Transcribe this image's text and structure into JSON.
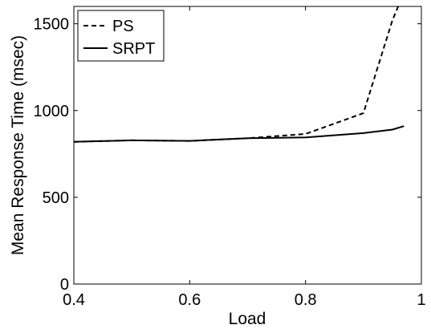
{
  "chart_data": {
    "type": "line",
    "title": "",
    "xlabel": "Load",
    "ylabel": "Mean Response Time (msec)",
    "xlim": [
      0.4,
      1.0
    ],
    "ylim": [
      0,
      1600
    ],
    "xticks": [
      0.4,
      0.6,
      0.8,
      1.0
    ],
    "xtick_labels": [
      "0.4",
      "0.6",
      "0.8",
      "1"
    ],
    "yticks": [
      0,
      500,
      1000,
      1500
    ],
    "ytick_labels": [
      "0",
      "500",
      "1000",
      "1500"
    ],
    "grid": false,
    "legend_position": "top-left",
    "series": [
      {
        "name": "PS",
        "style": "dashed",
        "color": "#000000",
        "x": [
          0.4,
          0.5,
          0.6,
          0.7,
          0.8,
          0.9,
          0.95,
          0.96
        ],
        "y": [
          820,
          828,
          825,
          840,
          865,
          985,
          1520,
          1600
        ]
      },
      {
        "name": "SRPT",
        "style": "solid",
        "color": "#000000",
        "x": [
          0.4,
          0.5,
          0.6,
          0.7,
          0.8,
          0.9,
          0.95,
          0.97
        ],
        "y": [
          820,
          828,
          825,
          840,
          845,
          870,
          890,
          910
        ]
      }
    ]
  }
}
